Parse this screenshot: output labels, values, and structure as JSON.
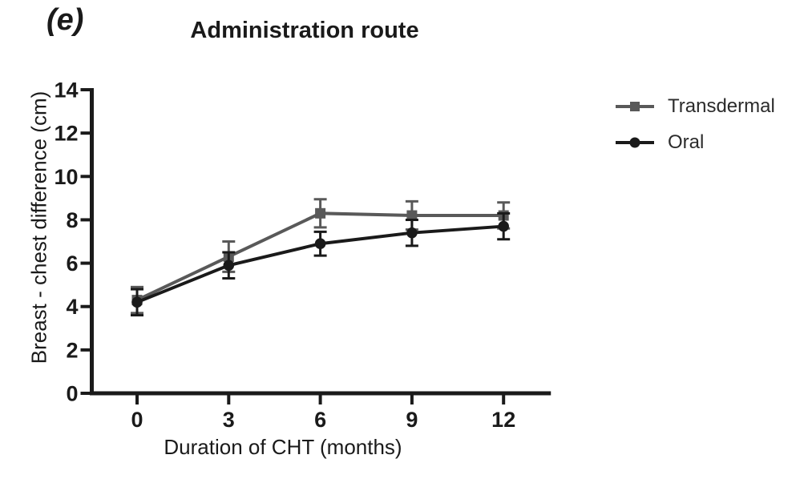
{
  "panel_label": "(e)",
  "chart_data": {
    "type": "line",
    "title": "Administration route",
    "xlabel": "Duration of CHT (months)",
    "ylabel": "Breast - chest difference (cm)",
    "x": [
      0,
      3,
      6,
      9,
      12
    ],
    "xticks": [
      "0",
      "3",
      "6",
      "9",
      "12"
    ],
    "yticks": [
      0,
      2,
      4,
      6,
      8,
      10,
      12,
      14
    ],
    "xlim": [
      -1.55,
      13.55
    ],
    "ylim": [
      0,
      14
    ],
    "grid": false,
    "error_bars": true,
    "legend_position": "right-outside",
    "axis_color": "#1a1a1a",
    "series": [
      {
        "name": "Transdermal",
        "marker": "square",
        "color": "#595959",
        "values": [
          4.3,
          6.3,
          8.3,
          8.2,
          8.2
        ],
        "errors": [
          0.6,
          0.7,
          0.65,
          0.65,
          0.6
        ]
      },
      {
        "name": "Oral",
        "marker": "circle",
        "color": "#1a1a1a",
        "values": [
          4.2,
          5.9,
          6.9,
          7.4,
          7.7
        ],
        "errors": [
          0.6,
          0.6,
          0.55,
          0.6,
          0.6
        ]
      }
    ]
  }
}
